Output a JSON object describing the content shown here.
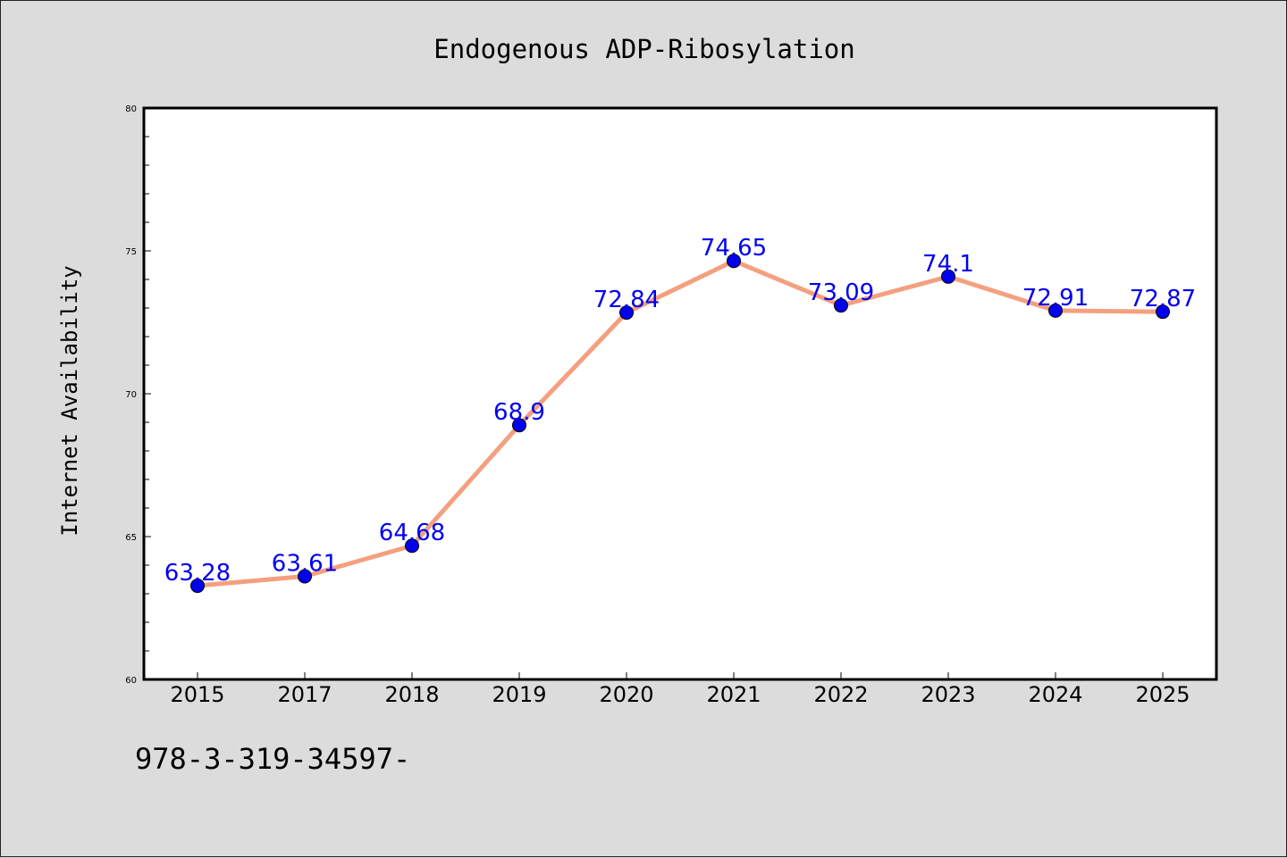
{
  "chart_data": {
    "type": "line",
    "title": "Endogenous ADP-Ribosylation",
    "xlabel": "",
    "ylabel": "Internet Availability",
    "categories": [
      "2015",
      "2017",
      "2018",
      "2019",
      "2020",
      "2021",
      "2022",
      "2023",
      "2024",
      "2025"
    ],
    "series": [
      {
        "values": [
          63.28,
          63.61,
          64.68,
          68.9,
          72.84,
          74.65,
          73.09,
          74.1,
          72.91,
          72.87
        ],
        "labels": [
          "63.28",
          "63.61",
          "64.68",
          "68.9",
          "72.84",
          "74.65",
          "73.09",
          "74.1",
          "72.91",
          "72.87"
        ],
        "line_color": "#f4a07f",
        "marker_color": "#0000ee",
        "label_color": "#0000ee"
      }
    ],
    "ylim": [
      60,
      80
    ],
    "yticks": [
      "60",
      "65",
      "70",
      "75",
      "80"
    ],
    "grid": false,
    "legend": "none"
  },
  "footnote": "978-3-319-34597-"
}
